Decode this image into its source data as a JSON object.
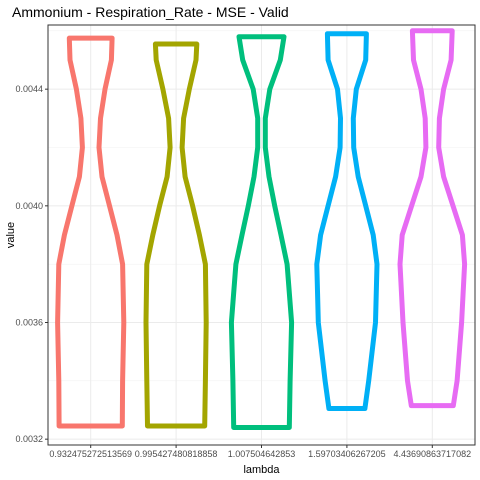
{
  "chart_data": {
    "type": "violin",
    "title": "Ammonium - Respiration_Rate - MSE - Valid",
    "xlabel": "lambda",
    "ylabel": "value",
    "categories": [
      "0.932475272513569",
      "0.995427480818858",
      "1.007504642853",
      "1.59703406267205",
      "4.43690863717082"
    ],
    "ylim": [
      0.00318,
      0.00462
    ],
    "yticks": [
      0.0032,
      0.0036,
      0.004,
      0.0044
    ],
    "ytick_labels": [
      "0.0032",
      "0.0036",
      "0.0040",
      "0.0044"
    ],
    "grid": true,
    "legend": "none",
    "series": [
      {
        "category": "0.932475272513569",
        "color": "#F8766D",
        "min": 0.003245,
        "max": 0.004575,
        "profile": [
          [
            0.003245,
            0.84
          ],
          [
            0.0034,
            0.85
          ],
          [
            0.0036,
            0.88
          ],
          [
            0.0038,
            0.85
          ],
          [
            0.0039,
            0.7
          ],
          [
            0.004,
            0.5
          ],
          [
            0.0041,
            0.3
          ],
          [
            0.0042,
            0.22
          ],
          [
            0.0043,
            0.26
          ],
          [
            0.0044,
            0.38
          ],
          [
            0.0045,
            0.55
          ],
          [
            0.004575,
            0.57
          ]
        ]
      },
      {
        "category": "0.995427480818858",
        "color": "#A3A500",
        "min": 0.003245,
        "max": 0.004555,
        "profile": [
          [
            0.003245,
            0.76
          ],
          [
            0.0034,
            0.78
          ],
          [
            0.0036,
            0.8
          ],
          [
            0.0038,
            0.78
          ],
          [
            0.0039,
            0.62
          ],
          [
            0.004,
            0.44
          ],
          [
            0.0041,
            0.24
          ],
          [
            0.0042,
            0.16
          ],
          [
            0.0043,
            0.2
          ],
          [
            0.0044,
            0.35
          ],
          [
            0.0045,
            0.53
          ],
          [
            0.004555,
            0.55
          ]
        ]
      },
      {
        "category": "1.007504642853",
        "color": "#00BF7D",
        "min": 0.00324,
        "max": 0.00458,
        "profile": [
          [
            0.00324,
            0.74
          ],
          [
            0.0034,
            0.76
          ],
          [
            0.0036,
            0.8
          ],
          [
            0.0038,
            0.68
          ],
          [
            0.0039,
            0.52
          ],
          [
            0.004,
            0.35
          ],
          [
            0.0041,
            0.2
          ],
          [
            0.0042,
            0.1
          ],
          [
            0.0043,
            0.1
          ],
          [
            0.0044,
            0.22
          ],
          [
            0.0045,
            0.5
          ],
          [
            0.00458,
            0.6
          ]
        ]
      },
      {
        "category": "1.59703406267205",
        "color": "#00B0F6",
        "min": 0.003305,
        "max": 0.00459,
        "profile": [
          [
            0.003305,
            0.48
          ],
          [
            0.0034,
            0.58
          ],
          [
            0.0036,
            0.76
          ],
          [
            0.0038,
            0.8
          ],
          [
            0.0039,
            0.7
          ],
          [
            0.004,
            0.5
          ],
          [
            0.0041,
            0.3
          ],
          [
            0.0042,
            0.18
          ],
          [
            0.0043,
            0.17
          ],
          [
            0.0044,
            0.25
          ],
          [
            0.0045,
            0.5
          ],
          [
            0.00459,
            0.52
          ]
        ]
      },
      {
        "category": "4.43690863717082",
        "color": "#E76BF3",
        "min": 0.003315,
        "max": 0.0046,
        "profile": [
          [
            0.003315,
            0.56
          ],
          [
            0.0034,
            0.66
          ],
          [
            0.0036,
            0.78
          ],
          [
            0.0038,
            0.86
          ],
          [
            0.0039,
            0.8
          ],
          [
            0.004,
            0.55
          ],
          [
            0.0041,
            0.3
          ],
          [
            0.0042,
            0.17
          ],
          [
            0.0043,
            0.19
          ],
          [
            0.0044,
            0.3
          ],
          [
            0.0045,
            0.5
          ],
          [
            0.0046,
            0.53
          ]
        ]
      }
    ]
  }
}
